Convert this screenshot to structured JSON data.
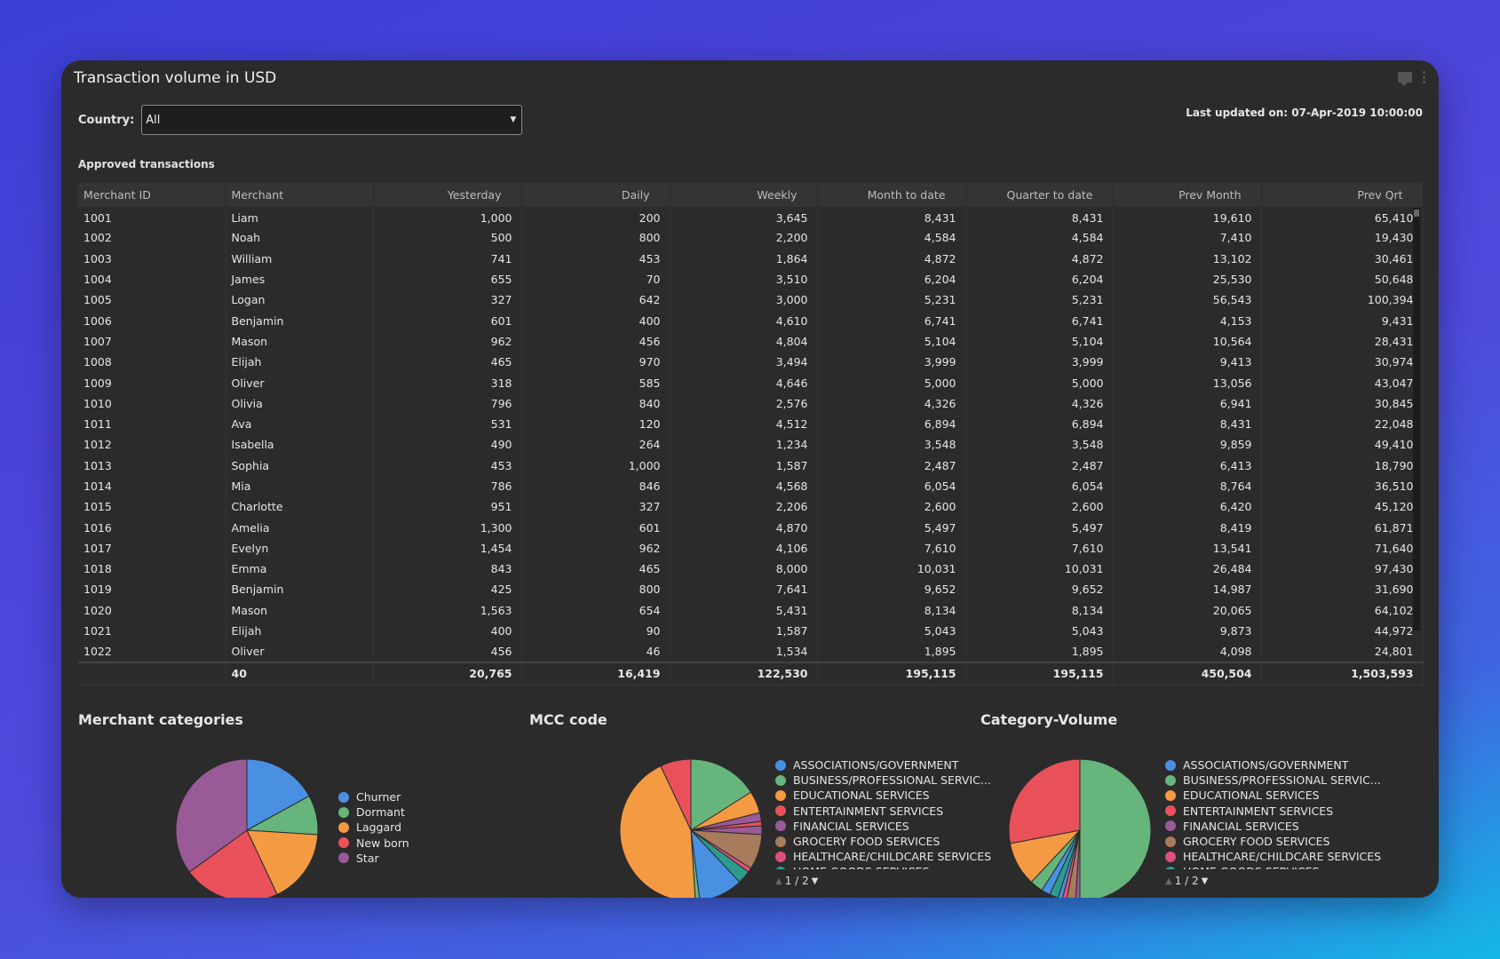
{
  "card": {
    "title": "Transaction volume in USD",
    "country_label": "Country:",
    "country_value": "All",
    "last_updated": "Last updated on: 07-Apr-2019 10:00:00",
    "section_label": "Approved transactions"
  },
  "table": {
    "columns": [
      "Merchant ID",
      "Merchant",
      "Yesterday",
      "Daily",
      "Weekly",
      "Month to date",
      "Quarter to date",
      "Prev Month",
      "Prev Qrt"
    ],
    "rows": [
      [
        "1001",
        "Liam",
        "1,000",
        "200",
        "3,645",
        "8,431",
        "8,431",
        "19,610",
        "65,410"
      ],
      [
        "1002",
        "Noah",
        "500",
        "800",
        "2,200",
        "4,584",
        "4,584",
        "7,410",
        "19,430"
      ],
      [
        "1003",
        "William",
        "741",
        "453",
        "1,864",
        "4,872",
        "4,872",
        "13,102",
        "30,461"
      ],
      [
        "1004",
        "James",
        "655",
        "70",
        "3,510",
        "6,204",
        "6,204",
        "25,530",
        "50,648"
      ],
      [
        "1005",
        "Logan",
        "327",
        "642",
        "3,000",
        "5,231",
        "5,231",
        "56,543",
        "100,394"
      ],
      [
        "1006",
        "Benjamin",
        "601",
        "400",
        "4,610",
        "6,741",
        "6,741",
        "4,153",
        "9,431"
      ],
      [
        "1007",
        "Mason",
        "962",
        "456",
        "4,804",
        "5,104",
        "5,104",
        "10,564",
        "28,431"
      ],
      [
        "1008",
        "Elijah",
        "465",
        "970",
        "3,494",
        "3,999",
        "3,999",
        "9,413",
        "30,974"
      ],
      [
        "1009",
        "Oliver",
        "318",
        "585",
        "4,646",
        "5,000",
        "5,000",
        "13,056",
        "43,047"
      ],
      [
        "1010",
        "Olivia",
        "796",
        "840",
        "2,576",
        "4,326",
        "4,326",
        "6,941",
        "30,845"
      ],
      [
        "1011",
        "Ava",
        "531",
        "120",
        "4,512",
        "6,894",
        "6,894",
        "8,431",
        "22,048"
      ],
      [
        "1012",
        "Isabella",
        "490",
        "264",
        "1,234",
        "3,548",
        "3,548",
        "9,859",
        "49,410"
      ],
      [
        "1013",
        "Sophia",
        "453",
        "1,000",
        "1,587",
        "2,487",
        "2,487",
        "6,413",
        "18,790"
      ],
      [
        "1014",
        "Mia",
        "786",
        "846",
        "4,568",
        "6,054",
        "6,054",
        "8,764",
        "36,510"
      ],
      [
        "1015",
        "Charlotte",
        "951",
        "327",
        "2,206",
        "2,600",
        "2,600",
        "6,420",
        "45,120"
      ],
      [
        "1016",
        "Amelia",
        "1,300",
        "601",
        "4,870",
        "5,497",
        "5,497",
        "8,419",
        "61,871"
      ],
      [
        "1017",
        "Evelyn",
        "1,454",
        "962",
        "4,106",
        "7,610",
        "7,610",
        "13,541",
        "71,640"
      ],
      [
        "1018",
        "Emma",
        "843",
        "465",
        "8,000",
        "10,031",
        "10,031",
        "26,484",
        "97,430"
      ],
      [
        "1019",
        "Benjamin",
        "425",
        "800",
        "7,641",
        "9,652",
        "9,652",
        "14,987",
        "31,690"
      ],
      [
        "1020",
        "Mason",
        "1,563",
        "654",
        "5,431",
        "8,134",
        "8,134",
        "20,065",
        "64,102"
      ],
      [
        "1021",
        "Elijah",
        "400",
        "90",
        "1,587",
        "5,043",
        "5,043",
        "9,873",
        "44,972"
      ],
      [
        "1022",
        "Oliver",
        "456",
        "46",
        "1,534",
        "1,895",
        "1,895",
        "4,098",
        "24,801"
      ]
    ],
    "totals": [
      "",
      "40",
      "20,765",
      "16,419",
      "122,530",
      "195,115",
      "195,115",
      "450,504",
      "1,503,593"
    ]
  },
  "charts": {
    "merchant_categories": {
      "title": "Merchant categories",
      "legend": [
        {
          "label": "Churner",
          "color": "#4a90e2"
        },
        {
          "label": "Dormant",
          "color": "#66b57c"
        },
        {
          "label": "Laggard",
          "color": "#f39a43"
        },
        {
          "label": "New born",
          "color": "#e8515a"
        },
        {
          "label": "Star",
          "color": "#9a5a98"
        }
      ]
    },
    "mcc_code": {
      "title": "MCC code",
      "legend": [
        {
          "label": "ASSOCIATIONS/GOVERNMENT",
          "color": "#4a90e2"
        },
        {
          "label": "BUSINESS/PROFESSIONAL SERVIC...",
          "color": "#66b57c"
        },
        {
          "label": "EDUCATIONAL SERVICES",
          "color": "#f39a43"
        },
        {
          "label": "ENTERTAINMENT SERVICES",
          "color": "#e8515a"
        },
        {
          "label": "FINANCIAL SERVICES",
          "color": "#9a5a98"
        },
        {
          "label": "GROCERY FOOD SERVICES",
          "color": "#a77b5b"
        },
        {
          "label": "HEALTHCARE/CHILDCARE SERVICES",
          "color": "#e04f7a"
        },
        {
          "label": "HOME GOODS SERVICES",
          "color": "#2a9d8f"
        }
      ],
      "pager": "1 / 2"
    },
    "category_volume": {
      "title": "Category-Volume",
      "legend": [
        {
          "label": "ASSOCIATIONS/GOVERNMENT",
          "color": "#4a90e2"
        },
        {
          "label": "BUSINESS/PROFESSIONAL SERVIC...",
          "color": "#66b57c"
        },
        {
          "label": "EDUCATIONAL SERVICES",
          "color": "#f39a43"
        },
        {
          "label": "ENTERTAINMENT SERVICES",
          "color": "#e8515a"
        },
        {
          "label": "FINANCIAL SERVICES",
          "color": "#9a5a98"
        },
        {
          "label": "GROCERY FOOD SERVICES",
          "color": "#a77b5b"
        },
        {
          "label": "HEALTHCARE/CHILDCARE SERVICES",
          "color": "#e04f7a"
        },
        {
          "label": "HOME GOODS SERVICES",
          "color": "#2a9d8f"
        }
      ],
      "pager": "1 / 2"
    }
  },
  "chart_data": [
    {
      "type": "pie",
      "title": "Merchant categories",
      "labels": [
        "Churner",
        "Dormant",
        "Laggard",
        "New born",
        "Star"
      ],
      "values": [
        17,
        9,
        17,
        22,
        35
      ],
      "colors": [
        "#4a90e2",
        "#66b57c",
        "#f39a43",
        "#e8515a",
        "#9a5a98"
      ]
    },
    {
      "type": "pie",
      "title": "MCC code",
      "labels": [
        "BUSINESS/PROFESSIONAL SERVIC...",
        "EDUCATIONAL SERVICES",
        "FINANCIAL SERVICES",
        "ENTERTAINMENT SERVICES",
        "FINANCIAL SERVICES",
        "GROCERY FOOD SERVICES",
        "HEALTHCARE/CHILDCARE SERVICES",
        "HOME GOODS SERVICES",
        "ASSOCIATIONS/GOVERNMENT",
        "BUSINESS/PROFESSIONAL SERVIC...",
        "EDUCATIONAL SERVICES",
        "ENTERTAINMENT SERVICES"
      ],
      "values": [
        16,
        5,
        2,
        1,
        2,
        8,
        1,
        3,
        10,
        1,
        44,
        7
      ],
      "colors": [
        "#66b57c",
        "#f39a43",
        "#9a5a98",
        "#e8515a",
        "#9a5a98",
        "#a77b5b",
        "#e04f7a",
        "#2a9d8f",
        "#4a90e2",
        "#66b57c",
        "#f39a43",
        "#e8515a"
      ]
    },
    {
      "type": "pie",
      "title": "Category-Volume",
      "labels": [
        "BUSINESS/PROFESSIONAL SERVIC...",
        "FINANCIAL SERVICES",
        "GROCERY FOOD SERVICES",
        "HEALTHCARE/CHILDCARE SERVICES",
        "ASSOCIATIONS/GOVERNMENT",
        "HOME GOODS SERVICES",
        "ASSOCIATIONS/GOVERNMENT",
        "BUSINESS/PROFESSIONAL SERVIC...",
        "EDUCATIONAL SERVICES",
        "ENTERTAINMENT SERVICES"
      ],
      "values": [
        50,
        1,
        2,
        1,
        1,
        2,
        2,
        3,
        10,
        28
      ],
      "colors": [
        "#66b57c",
        "#9a5a98",
        "#a77b5b",
        "#e04f7a",
        "#4a90e2",
        "#2a9d8f",
        "#4a90e2",
        "#66b57c",
        "#f39a43",
        "#e8515a"
      ]
    }
  ]
}
